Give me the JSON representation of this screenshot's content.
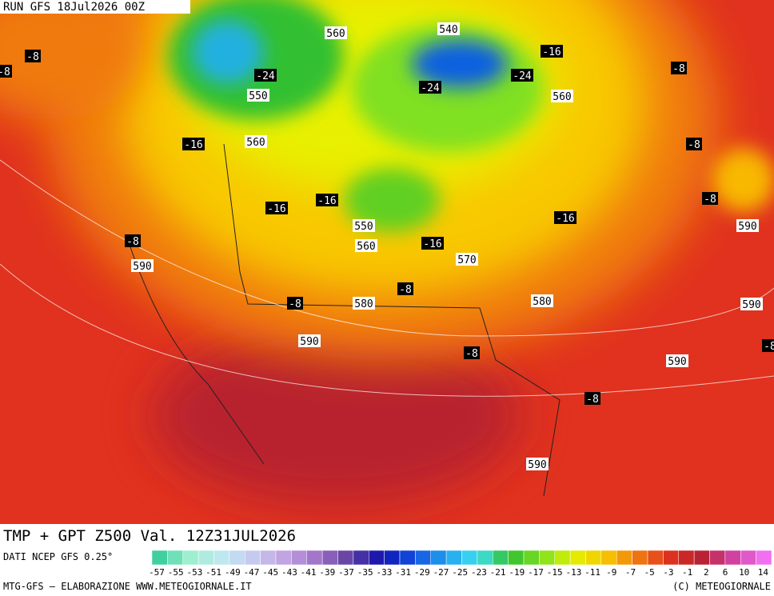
{
  "header": {
    "run": "RUN GFS 18Jul2026 00Z"
  },
  "title": "TMP + GPT Z500 Val. 12Z31JUL2026",
  "source": "DATI NCEP GFS 0.25°",
  "footer": {
    "left": "MTG-GFS — ELABORAZIONE WWW.METEOGIORNALE.IT",
    "right": "(C) METEOGIORNALE"
  },
  "colorbar": {
    "labels": [
      -57,
      -55,
      -53,
      -51,
      -49,
      -47,
      -45,
      -43,
      -41,
      -39,
      -37,
      -35,
      -33,
      -31,
      -29,
      -27,
      -25,
      -23,
      -21,
      -19,
      -17,
      -15,
      -13,
      -11,
      -9,
      -7,
      -5,
      -3,
      -1,
      2,
      6,
      10,
      14
    ]
  },
  "map_labels": {
    "heights": [
      "560",
      "540",
      "550",
      "560",
      "560",
      "550",
      "590",
      "560",
      "570",
      "590",
      "580",
      "580",
      "590",
      "590",
      "590",
      "590"
    ],
    "temperatures": [
      "-24",
      "-24",
      "-24",
      "-16",
      "-8",
      "-8",
      "-8",
      "-16",
      "-8",
      "-16",
      "-16",
      "-8",
      "-16",
      "-8",
      "-16",
      "-8",
      "-8",
      "-8",
      "-8",
      "-8"
    ]
  }
}
